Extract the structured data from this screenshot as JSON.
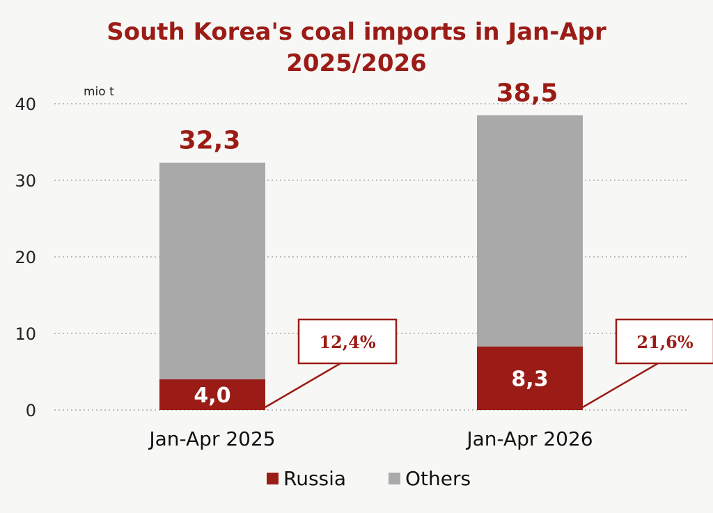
{
  "chart_data": {
    "type": "bar",
    "stacked": true,
    "title": "South Korea's coal imports in Jan-Apr 2025/2026",
    "title_lines": [
      "South Korea's coal imports in Jan-Apr",
      "2025/2026"
    ],
    "ylabel": "mio t",
    "ylim": [
      0,
      40
    ],
    "yticks": [
      0,
      10,
      20,
      30,
      40
    ],
    "grid": true,
    "legend": "bottom",
    "categories": [
      "Jan-Apr 2025",
      "Jan-Apr 2026"
    ],
    "series": [
      {
        "name": "Russia",
        "values": [
          4.0,
          8.3
        ],
        "labels": [
          "4,0",
          "8,3"
        ],
        "color": "#9b1c16"
      },
      {
        "name": "Others",
        "values": [
          28.3,
          30.2
        ],
        "color": "#a9a9a9"
      }
    ],
    "totals": [
      32.3,
      38.5
    ],
    "total_labels": [
      "32,3",
      "38,5"
    ],
    "russia_share_labels": [
      "12,4%",
      "21,6%"
    ]
  }
}
